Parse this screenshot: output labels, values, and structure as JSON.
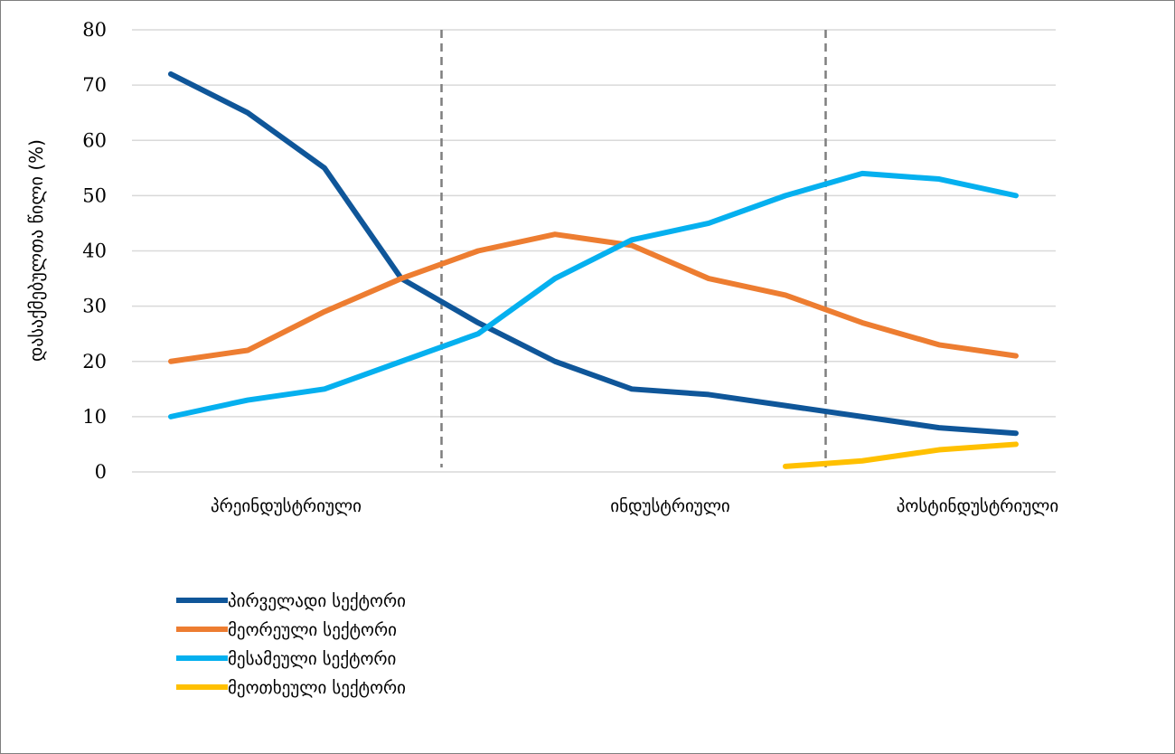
{
  "chart_data": {
    "type": "line",
    "title": "",
    "xlabel": "",
    "ylabel": "დასაქმებულთა წილი (%)",
    "ylim": [
      0,
      80
    ],
    "yticks": [
      0,
      10,
      20,
      30,
      40,
      50,
      60,
      70,
      80
    ],
    "grid": true,
    "legend_position": "bottom-left",
    "x": [
      1,
      2,
      3,
      4,
      5,
      6,
      7,
      8,
      9,
      10,
      11,
      12,
      13
    ],
    "category_labels": [
      {
        "text": "პრეინდუსტრიული",
        "at": 2.5
      },
      {
        "text": "ინდუსტრიული",
        "at": 7.5
      },
      {
        "text": "პოსტინდუსტრიული",
        "at": 11.5
      }
    ],
    "dividers": [
      4.5,
      9.5
    ],
    "series": [
      {
        "name": "პირველადი სექტორი",
        "color": "#0F5699",
        "values": [
          72,
          65,
          55,
          35,
          27,
          20,
          15,
          14,
          12,
          10,
          8,
          7,
          null
        ]
      },
      {
        "name": "მეორეული სექტორი",
        "color": "#ED7D31",
        "values": [
          20,
          22,
          29,
          35,
          40,
          43,
          41,
          35,
          32,
          27,
          23,
          21,
          null
        ]
      },
      {
        "name": "მესამეული სექტორი",
        "color": "#05B0EF",
        "values": [
          10,
          13,
          15,
          20,
          25,
          35,
          42,
          45,
          50,
          54,
          53,
          50,
          null
        ]
      },
      {
        "name": "მეოთხეული სექტორი",
        "color": "#FFC000",
        "values": [
          null,
          null,
          null,
          null,
          null,
          null,
          null,
          null,
          1,
          2,
          4,
          5,
          null
        ]
      }
    ]
  }
}
